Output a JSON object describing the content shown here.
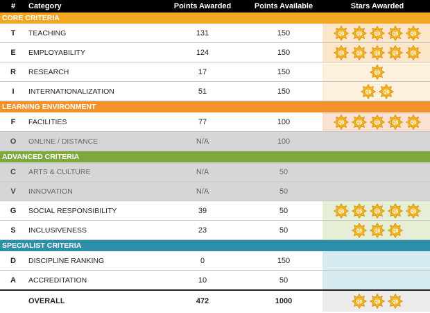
{
  "header": {
    "code": "#",
    "category": "Category",
    "points_awarded": "Points Awarded",
    "points_available": "Points Available",
    "stars_awarded": "Stars Awarded"
  },
  "sections": {
    "core": "CORE CRITERIA",
    "learning": "LEARNING ENVIRONMENT",
    "advanced": "ADVANCED CRITERIA",
    "specialist": "SPECIALIST CRITERIA"
  },
  "star_label": "QS",
  "colors": {
    "star_fill": "#f4b522",
    "star_stroke": "#d98b0e"
  },
  "rows": [
    {
      "code": "T",
      "category": "TEACHING",
      "awarded": "131",
      "available": "150",
      "stars": 5
    },
    {
      "code": "E",
      "category": "EMPLOYABILITY",
      "awarded": "124",
      "available": "150",
      "stars": 5
    },
    {
      "code": "R",
      "category": "RESEARCH",
      "awarded": "17",
      "available": "150",
      "stars": 1
    },
    {
      "code": "I",
      "category": "INTERNATIONALIZATION",
      "awarded": "51",
      "available": "150",
      "stars": 2
    },
    {
      "code": "F",
      "category": "FACILITIES",
      "awarded": "77",
      "available": "100",
      "stars": 5
    },
    {
      "code": "O",
      "category": "ONLINE / DISTANCE",
      "awarded": "N/A",
      "available": "100",
      "stars": 0
    },
    {
      "code": "C",
      "category": "ARTS & CULTURE",
      "awarded": "N/A",
      "available": "50",
      "stars": 0
    },
    {
      "code": "V",
      "category": "INNOVATION",
      "awarded": "N/A",
      "available": "50",
      "stars": 0
    },
    {
      "code": "G",
      "category": "SOCIAL RESPONSIBILITY",
      "awarded": "39",
      "available": "50",
      "stars": 5
    },
    {
      "code": "S",
      "category": "INCLUSIVENESS",
      "awarded": "23",
      "available": "50",
      "stars": 3
    },
    {
      "code": "D",
      "category": "DISCIPLINE RANKING",
      "awarded": "0",
      "available": "150",
      "stars": 0
    },
    {
      "code": "A",
      "category": "ACCREDITATION",
      "awarded": "10",
      "available": "50",
      "stars": 0
    }
  ],
  "overall": {
    "label": "OVERALL",
    "awarded": "472",
    "available": "1000",
    "stars": 3
  }
}
